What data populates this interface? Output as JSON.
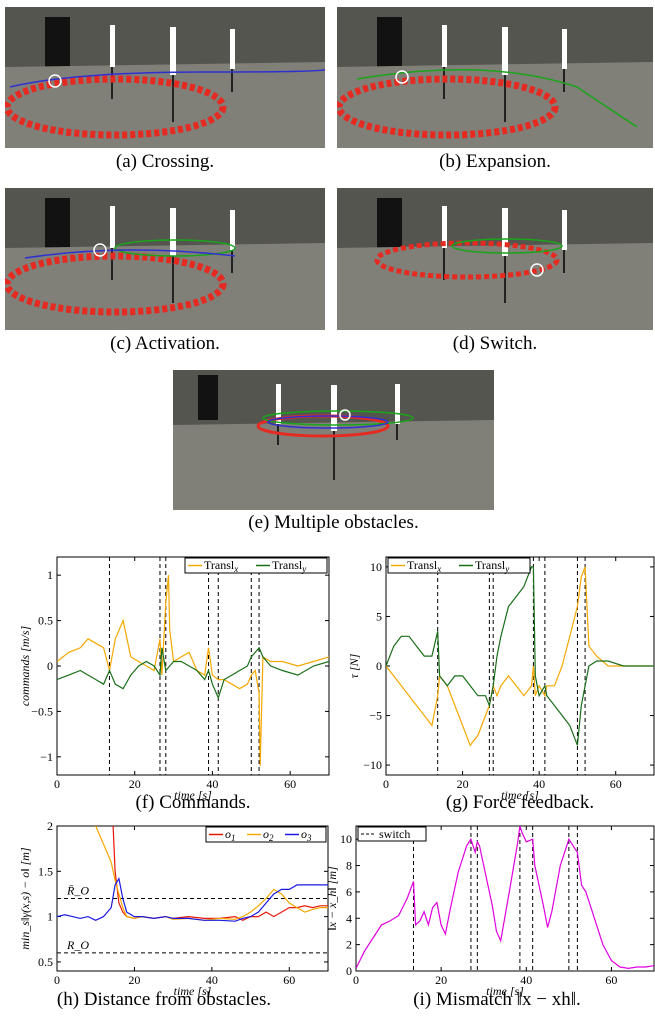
{
  "photos": [
    {
      "id": "a",
      "caption": "(a) Crossing."
    },
    {
      "id": "b",
      "caption": "(b) Expansion."
    },
    {
      "id": "c",
      "caption": "(c) Activation."
    },
    {
      "id": "d",
      "caption": "(d) Switch."
    },
    {
      "id": "e",
      "caption": "(e) Multiple obstacles."
    }
  ],
  "colors": {
    "orange": "#f5a800",
    "green": "#1a6e1a",
    "red": "#e8190a",
    "blue": "#1a1ae0",
    "magenta": "#e000e0",
    "photo_floor": "#7c7c74",
    "photo_wall": "#3a3a36",
    "track_red": "#e52a22"
  },
  "captions": {
    "f": "(f) Commands.",
    "g": "(g) Force feedback.",
    "h": "(h) Distance from obstacles.",
    "i": "(i) Mismatch ‖x − xh‖."
  },
  "chart_data": [
    {
      "id": "f",
      "type": "line",
      "xlabel": "time [s]",
      "ylabel": "commands [m/s]",
      "xlim": [
        0,
        70
      ],
      "ylim": [
        -1.2,
        1.2
      ],
      "xticks": [
        0,
        20,
        40,
        60
      ],
      "yticks": [
        -1,
        -0.5,
        0,
        0.5,
        1
      ],
      "ytick_labels": [
        "−1",
        "−0.5",
        "0",
        "0.5",
        "1"
      ],
      "vlines": [
        13.5,
        26.5,
        28,
        39,
        41.5,
        50,
        52
      ],
      "legend": "top-right",
      "series": [
        {
          "name": "Transl_x",
          "color": "orange",
          "x": [
            0,
            3,
            6,
            8,
            10,
            12,
            13.5,
            15,
            17,
            19,
            21,
            23,
            25,
            26.5,
            27,
            28,
            28.7,
            29,
            30,
            32,
            34,
            36,
            38,
            39,
            40,
            41.5,
            43,
            45,
            47,
            49,
            50,
            51,
            52,
            52.3,
            53,
            55,
            58,
            62,
            66,
            70
          ],
          "y": [
            0.05,
            0.15,
            0.2,
            0.3,
            0.25,
            0.2,
            -0.05,
            0.3,
            0.5,
            0.1,
            0.05,
            0,
            -0.05,
            0.3,
            -0.1,
            0.7,
            1.0,
            0.4,
            0.05,
            0.1,
            0.15,
            -0.05,
            -0.1,
            0.2,
            -0.1,
            -0.15,
            -0.15,
            -0.2,
            -0.25,
            -0.2,
            -0.1,
            -0.05,
            -0.3,
            -1.1,
            0.1,
            0.05,
            0.05,
            0,
            0.05,
            0.1
          ]
        },
        {
          "name": "Transl_y",
          "color": "green",
          "x": [
            0,
            3,
            6,
            8,
            10,
            12,
            13.5,
            15,
            17,
            19,
            21,
            23,
            25,
            26.5,
            27,
            28,
            29,
            30,
            32,
            34,
            36,
            38,
            39,
            40,
            41.5,
            43,
            45,
            47,
            49,
            50,
            51,
            52,
            53,
            55,
            58,
            62,
            66,
            70
          ],
          "y": [
            -0.15,
            -0.1,
            -0.05,
            -0.1,
            -0.15,
            -0.2,
            -0.05,
            -0.2,
            -0.25,
            -0.1,
            0,
            0.05,
            0,
            -0.1,
            0.2,
            -0.05,
            0,
            0.05,
            0.05,
            0,
            -0.05,
            -0.15,
            -0.05,
            -0.2,
            -0.35,
            -0.15,
            -0.1,
            -0.05,
            0,
            0.1,
            0.15,
            0.2,
            0.1,
            0,
            -0.05,
            -0.1,
            0,
            0.05
          ]
        }
      ]
    },
    {
      "id": "g",
      "type": "line",
      "xlabel": "time [s]",
      "ylabel": "τ [N]",
      "xlim": [
        0,
        70
      ],
      "ylim": [
        -11,
        11
      ],
      "xticks": [
        0,
        20,
        40,
        60
      ],
      "yticks": [
        -10,
        -5,
        0,
        5,
        10
      ],
      "ytick_labels": [
        "−10",
        "−5",
        "0",
        "5",
        "10"
      ],
      "vlines": [
        13.5,
        27,
        28,
        38.5,
        41.5,
        50,
        52
      ],
      "legend": "top-left",
      "series": [
        {
          "name": "Transl_x",
          "color": "orange",
          "x": [
            0,
            2,
            4,
            6,
            8,
            10,
            12,
            13.5,
            14,
            16,
            18,
            20,
            22,
            24,
            26,
            27,
            28,
            29,
            30,
            32,
            34,
            36,
            38,
            38.5,
            39,
            40,
            41.5,
            42,
            44,
            46,
            48,
            50,
            51,
            52,
            53,
            55,
            58,
            62,
            66,
            70
          ],
          "y": [
            0,
            -1,
            -2,
            -3,
            -4,
            -5,
            -6,
            -3,
            -1,
            -2,
            -4,
            -6,
            -8,
            -7,
            -5,
            -4,
            -2,
            -3,
            -2,
            -1,
            -2,
            -3,
            -2,
            0,
            -3,
            -2,
            -3,
            -2,
            -2,
            0,
            3,
            6,
            9,
            10,
            2,
            1,
            0,
            0,
            0,
            0
          ]
        },
        {
          "name": "Transl_y",
          "color": "green",
          "x": [
            0,
            2,
            4,
            6,
            8,
            10,
            12,
            13.5,
            14,
            16,
            18,
            20,
            22,
            24,
            26,
            27,
            28,
            29,
            30,
            32,
            34,
            36,
            38,
            38.5,
            39,
            40,
            41.5,
            42,
            44,
            46,
            48,
            50,
            51,
            52,
            53,
            55,
            58,
            62,
            66,
            70
          ],
          "y": [
            0,
            2,
            3,
            3,
            2,
            1,
            1,
            3.5,
            -1,
            -2,
            -1,
            -1,
            -2,
            -3,
            -3,
            -4,
            -2,
            1,
            3,
            6,
            7,
            8,
            10,
            10,
            -1,
            -3,
            -2,
            -3,
            -4,
            -5,
            -6,
            -8,
            -4,
            -2,
            0,
            0.5,
            0.5,
            0,
            0,
            0
          ]
        }
      ]
    },
    {
      "id": "h",
      "type": "line",
      "xlabel": "time [s]",
      "ylabel": "min_s‖γ(x,s) − o‖ [m]",
      "xlim": [
        0,
        70
      ],
      "ylim": [
        0.4,
        2
      ],
      "xticks": [
        0,
        20,
        40,
        60
      ],
      "yticks": [
        0.5,
        1,
        1.5,
        2
      ],
      "ytick_labels": [
        "0.5",
        "1",
        "1.5",
        "2"
      ],
      "hlines": [
        {
          "y": 1.2,
          "label": "R̄_O"
        },
        {
          "y": 0.6,
          "label": "R_O"
        }
      ],
      "legend": "top-right",
      "series": [
        {
          "name": "o_1",
          "color": "red",
          "x": [
            14.5,
            15,
            16,
            17,
            18,
            20,
            22,
            25,
            28,
            30,
            34,
            38,
            42,
            46,
            48,
            50,
            52,
            54,
            56,
            58,
            60,
            62,
            64,
            66,
            68,
            70
          ],
          "y": [
            2.0,
            1.5,
            1.15,
            1.05,
            1.0,
            0.98,
            1.0,
            0.98,
            1.0,
            0.98,
            1.0,
            0.98,
            0.98,
            1.0,
            0.96,
            1.0,
            1.0,
            1.05,
            1.0,
            1.05,
            1.1,
            1.1,
            1.12,
            1.1,
            1.12,
            1.12
          ]
        },
        {
          "name": "o_2",
          "color": "orange",
          "x": [
            10,
            12,
            14,
            15,
            16,
            17,
            18,
            20,
            22,
            25,
            28,
            30,
            34,
            38,
            42,
            46,
            48,
            50,
            52,
            54,
            56,
            58,
            60,
            62,
            64,
            66,
            68,
            70
          ],
          "y": [
            2.0,
            1.8,
            1.6,
            1.4,
            1.25,
            1.1,
            1.0,
            0.98,
            1.0,
            0.98,
            1.0,
            0.97,
            0.98,
            0.96,
            0.98,
            0.97,
            1.0,
            1.05,
            1.12,
            1.2,
            1.3,
            1.25,
            1.15,
            1.1,
            1.05,
            1.08,
            1.1,
            1.1
          ]
        },
        {
          "name": "o_3",
          "color": "blue",
          "x": [
            0,
            2,
            4,
            6,
            8,
            10,
            12,
            14,
            15,
            16,
            17,
            18,
            20,
            22,
            25,
            28,
            30,
            34,
            38,
            42,
            46,
            48,
            50,
            52,
            54,
            56,
            58,
            60,
            62,
            64,
            66,
            68,
            70
          ],
          "y": [
            1.0,
            1.02,
            1.0,
            0.98,
            1.0,
            0.96,
            1.0,
            1.1,
            1.35,
            1.42,
            1.2,
            1.05,
            1.0,
            1.0,
            0.98,
            1.0,
            0.98,
            0.98,
            0.96,
            0.96,
            0.95,
            0.98,
            1.0,
            1.05,
            1.15,
            1.25,
            1.3,
            1.3,
            1.35,
            1.35,
            1.35,
            1.35,
            1.35
          ]
        }
      ]
    },
    {
      "id": "i",
      "type": "line",
      "xlabel": "time [s]",
      "ylabel": "‖x − x_h‖ [m]",
      "xlim": [
        0,
        70
      ],
      "ylim": [
        0,
        11
      ],
      "xticks": [
        0,
        20,
        40,
        60
      ],
      "yticks": [
        0,
        2,
        4,
        6,
        8,
        10
      ],
      "ytick_labels": [
        "0",
        "2",
        "4",
        "6",
        "8",
        "10"
      ],
      "vlines": [
        13.5,
        27,
        28.5,
        38.5,
        41.5,
        50,
        52
      ],
      "legend": "top-left",
      "legend_label": "switch",
      "series": [
        {
          "name": "",
          "color": "magenta",
          "x": [
            0,
            2,
            4,
            6,
            8,
            10,
            12,
            13.5,
            14,
            15,
            16,
            17,
            18,
            19,
            20,
            21,
            22,
            24,
            26,
            27,
            28,
            28.5,
            29,
            30,
            32,
            33,
            34,
            36,
            38,
            38.5,
            39,
            40,
            41.5,
            42,
            44,
            45,
            46,
            48,
            50,
            51,
            52,
            53,
            54,
            56,
            58,
            60,
            62,
            64,
            66,
            68,
            70
          ],
          "y": [
            0.2,
            1.5,
            2.5,
            3.5,
            3.8,
            4.2,
            5.5,
            6.8,
            3.5,
            3.8,
            4.5,
            3.5,
            4.8,
            5.2,
            3.5,
            2.8,
            4.5,
            7.5,
            9.5,
            10,
            9,
            9.8,
            9.5,
            8,
            5,
            3,
            2.3,
            6,
            9.8,
            11,
            10.5,
            9.8,
            10,
            8,
            5,
            3.3,
            4.5,
            8,
            10,
            9.5,
            9,
            6.5,
            6,
            4,
            2,
            0.8,
            0.3,
            0.2,
            0.3,
            0.3,
            0.4
          ]
        }
      ]
    }
  ]
}
